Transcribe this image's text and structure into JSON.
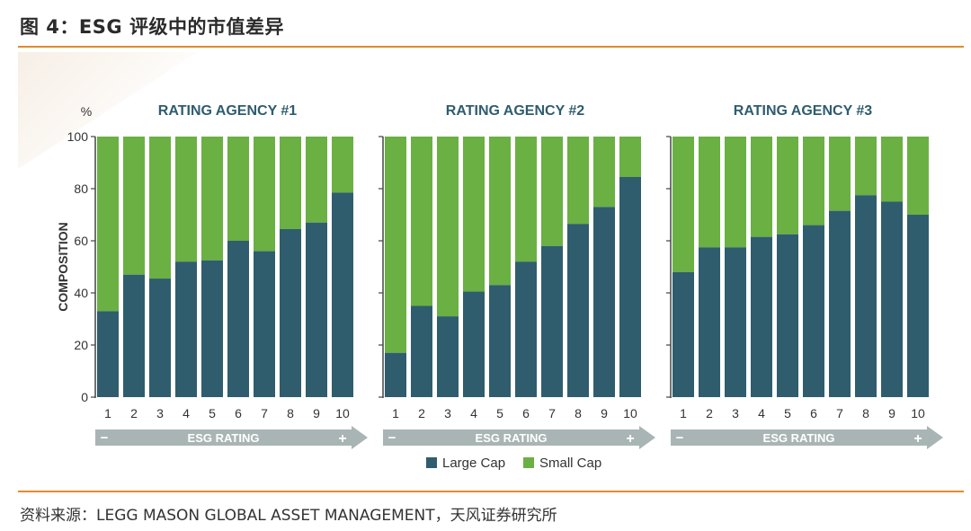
{
  "title": "图 4：ESG 评级中的市值差异",
  "source": "资料来源：LEGG MASON GLOBAL ASSET MANAGEMENT，天风证券研究所",
  "colors": {
    "large": "#2f5d6e",
    "small": "#6ab043",
    "arrow": "#a9b5b5",
    "title": "#2f5d6e"
  },
  "chart_data": {
    "type": "bar",
    "stacked": true,
    "ylabel": "COMPOSITION",
    "yunit": "%",
    "ylim": [
      0,
      100
    ],
    "yticks": [
      "0",
      "20",
      "40",
      "60",
      "80",
      "100"
    ],
    "xlabel": "ESG RATING",
    "arrow_minus": "−",
    "arrow_plus": "+",
    "categories": [
      "1",
      "2",
      "3",
      "4",
      "5",
      "6",
      "7",
      "8",
      "9",
      "10"
    ],
    "legend": [
      "Large Cap",
      "Small Cap"
    ],
    "panels": [
      {
        "title": "RATING AGENCY #1",
        "large_cap": [
          33,
          47,
          45.5,
          52,
          52.5,
          60,
          56,
          64.5,
          67,
          78.5
        ]
      },
      {
        "title": "RATING AGENCY #2",
        "large_cap": [
          17,
          35,
          31,
          40.5,
          43,
          52,
          58,
          66.5,
          73,
          84.5
        ]
      },
      {
        "title": "RATING AGENCY #3",
        "large_cap": [
          48,
          57.5,
          57.5,
          61.5,
          62.5,
          66,
          71.5,
          77.5,
          75,
          70
        ]
      }
    ]
  }
}
